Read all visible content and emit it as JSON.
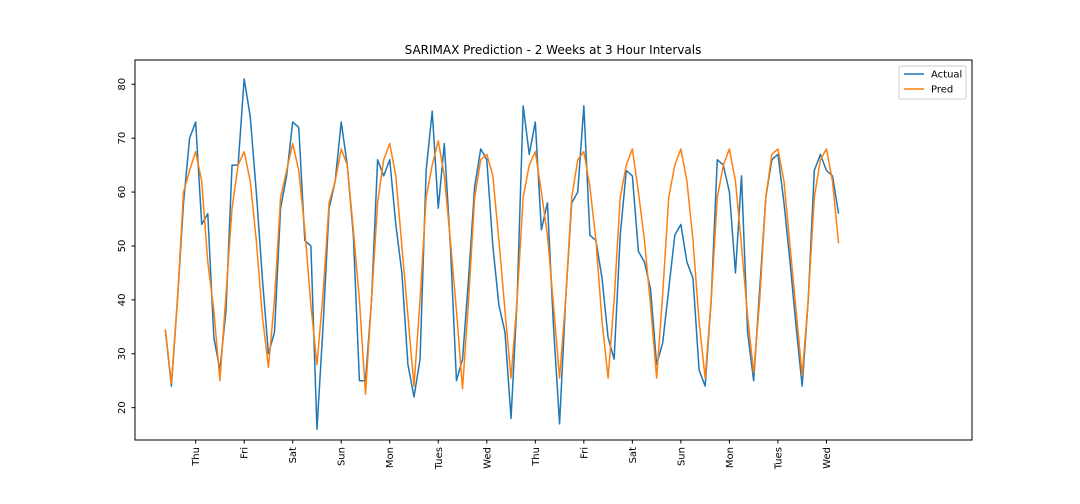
{
  "chart_data": {
    "type": "line",
    "title": "SARIMAX Prediction - 2 Weeks at 3 Hour Intervals",
    "xlabel": "",
    "ylabel": "",
    "ylim": [
      14,
      84.5
    ],
    "xlim": [
      -5,
      133
    ],
    "yticks": [
      20,
      30,
      40,
      50,
      60,
      70,
      80
    ],
    "xticks": [
      {
        "x": 5,
        "label": "Thu"
      },
      {
        "x": 13,
        "label": "Fri"
      },
      {
        "x": 21,
        "label": "Sat"
      },
      {
        "x": 29,
        "label": "Sun"
      },
      {
        "x": 37,
        "label": "Mon"
      },
      {
        "x": 45,
        "label": "Tues"
      },
      {
        "x": 53,
        "label": "Wed"
      },
      {
        "x": 61,
        "label": "Thu"
      },
      {
        "x": 69,
        "label": "Fri"
      },
      {
        "x": 77,
        "label": "Sat"
      },
      {
        "x": 85,
        "label": "Sun"
      },
      {
        "x": 93,
        "label": "Mon"
      },
      {
        "x": 101,
        "label": "Tues"
      },
      {
        "x": 109,
        "label": "Wed"
      }
    ],
    "grid": false,
    "legend_position": "top-right",
    "series": [
      {
        "name": "Actual",
        "color": "#1f77b4",
        "values": [
          34.5,
          24,
          40,
          58,
          70,
          73,
          54,
          56,
          33,
          27,
          38,
          65,
          65,
          81,
          74,
          60,
          44,
          30,
          34,
          57,
          63,
          73,
          72,
          51,
          50,
          16,
          35,
          57,
          62,
          73,
          65,
          52,
          25,
          25,
          40,
          66,
          63,
          66,
          54,
          45,
          28,
          22,
          29,
          64,
          75,
          57,
          69,
          50,
          25,
          29,
          44,
          61,
          68,
          66,
          50,
          39,
          34,
          18,
          40,
          76,
          67,
          73,
          53,
          58,
          35,
          17,
          40,
          58,
          60,
          76,
          52,
          51,
          44,
          33,
          29,
          52,
          64,
          63,
          49,
          47,
          42,
          28,
          32,
          42,
          52,
          54,
          47,
          44,
          27,
          24,
          40,
          66,
          65,
          60,
          45,
          63,
          34,
          25,
          42,
          59,
          66,
          67,
          58,
          47,
          35,
          24,
          40,
          64,
          67,
          64,
          63,
          56
        ],
        "start_x": 0
      },
      {
        "name": "Pred",
        "color": "#ff7f0e",
        "values": [
          34.5,
          24.5,
          40,
          60,
          64,
          67.5,
          62,
          47,
          38,
          25,
          41,
          57,
          65,
          67.5,
          62,
          51,
          37,
          27.5,
          40,
          59,
          64,
          69,
          64,
          53,
          39,
          28,
          41,
          58,
          62,
          68,
          65,
          53,
          40,
          22.5,
          40,
          58,
          66,
          69,
          63,
          50,
          37,
          24,
          40,
          59,
          65,
          69.5,
          63,
          51,
          38,
          23.5,
          40,
          59,
          66,
          67,
          63,
          51,
          38,
          25.5,
          40,
          59,
          65,
          67.5,
          60,
          52,
          39,
          25.5,
          40,
          59,
          66,
          67.5,
          61,
          51,
          36,
          25.5,
          40,
          59,
          65,
          68,
          60,
          51,
          39,
          25.5,
          41,
          59,
          65,
          68,
          62,
          51,
          36,
          25.5,
          40,
          59,
          65,
          68,
          62,
          50,
          37,
          26.5,
          40,
          59,
          67,
          68,
          62,
          50,
          38,
          26,
          40,
          59,
          66,
          68,
          62,
          50.5
        ],
        "start_x": 0
      }
    ]
  }
}
